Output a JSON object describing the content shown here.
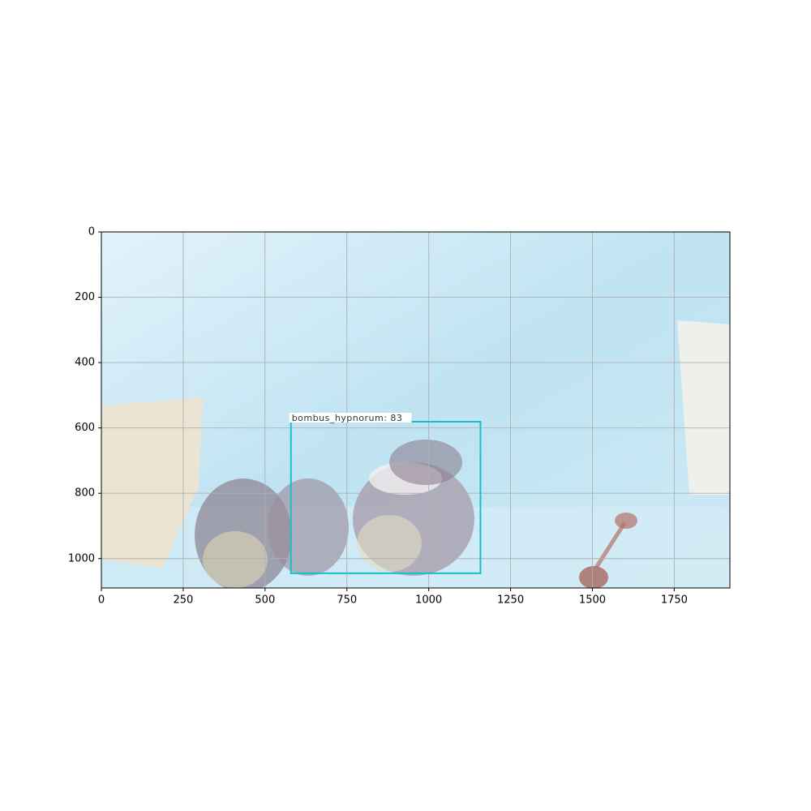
{
  "chart_data": {
    "type": "image",
    "xlim": [
      0,
      1920
    ],
    "ylim": [
      1090,
      0
    ],
    "xticks": [
      0,
      250,
      500,
      750,
      1000,
      1250,
      1500,
      1750
    ],
    "yticks": [
      0,
      200,
      400,
      600,
      800,
      1000
    ],
    "grid": true,
    "boxes": [
      {
        "label": "bombus_hypnorum: 83",
        "x": [
          579,
          1158
        ],
        "y": [
          581,
          1045
        ],
        "color": "#17becf"
      }
    ]
  }
}
